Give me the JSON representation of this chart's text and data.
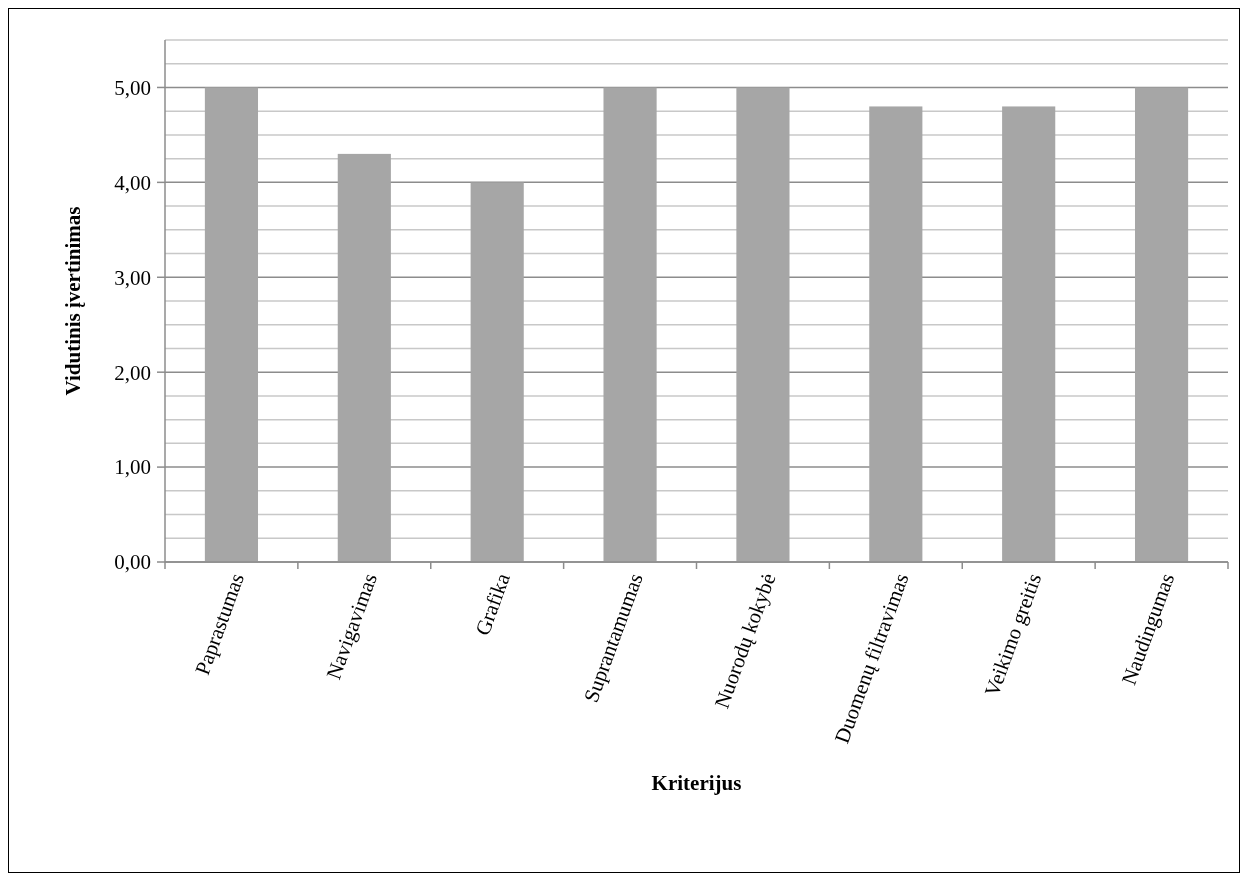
{
  "chart_data": {
    "type": "bar",
    "xlabel": "Kriterijus",
    "ylabel": "Vidutinis įvertinimas",
    "categories": [
      "Paprastumas",
      "Navigavimas",
      "Grafika",
      "Suprantamumas",
      "Nuorodų kokybė",
      "Duomenų filtravimas",
      "Veikimo greitis",
      "Naudingumas"
    ],
    "values": [
      5,
      4.3,
      4,
      5,
      5,
      4.8,
      4.8,
      5
    ],
    "color": "#a6a6a6",
    "ylim": [
      0,
      5.5
    ],
    "yticks": [
      {
        "value": 0,
        "label": "0,00"
      },
      {
        "value": 0.25,
        "label": null
      },
      {
        "value": 0.5,
        "label": null
      },
      {
        "value": 0.75,
        "label": null
      },
      {
        "value": 1,
        "label": "1,00"
      },
      {
        "value": 1.25,
        "label": null
      },
      {
        "value": 1.5,
        "label": null
      },
      {
        "value": 1.75,
        "label": null
      },
      {
        "value": 2,
        "label": "2,00"
      },
      {
        "value": 2.25,
        "label": null
      },
      {
        "value": 2.5,
        "label": null
      },
      {
        "value": 2.75,
        "label": null
      },
      {
        "value": 3,
        "label": "3,00"
      },
      {
        "value": 3.25,
        "label": null
      },
      {
        "value": 3.5,
        "label": null
      },
      {
        "value": 3.75,
        "label": null
      },
      {
        "value": 4,
        "label": "4,00"
      },
      {
        "value": 4.25,
        "label": null
      },
      {
        "value": 4.5,
        "label": null
      },
      {
        "value": 4.75,
        "label": null
      },
      {
        "value": 5,
        "label": "5,00"
      },
      {
        "value": 5.25,
        "label": null
      },
      {
        "value": 5.5,
        "label": null
      }
    ],
    "grid": "y"
  }
}
